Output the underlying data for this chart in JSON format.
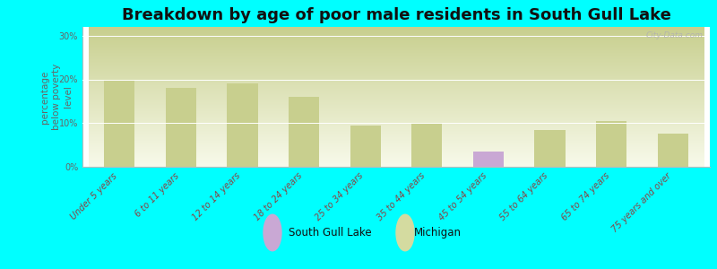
{
  "title": "Breakdown by age of poor male residents in South Gull Lake",
  "ylabel": "percentage\nbelow poverty\nlevel",
  "categories": [
    "Under 5 years",
    "6 to 11 years",
    "12 to 14 years",
    "18 to 24 years",
    "25 to 34 years",
    "35 to 44 years",
    "45 to 54 years",
    "55 to 64 years",
    "65 to 74 years",
    "75 years and over"
  ],
  "south_gull_lake_values": [
    0,
    0,
    0,
    0,
    0,
    0,
    3.5,
    0,
    0,
    0
  ],
  "michigan_values": [
    20.0,
    18.0,
    19.0,
    16.0,
    9.5,
    10.0,
    0,
    8.5,
    10.5,
    7.5
  ],
  "south_gull_lake_color": "#c9a8d4",
  "michigan_color": "#c8cf8e",
  "background_color": "#00ffff",
  "plot_bg_topleft": "#c8cf8e",
  "plot_bg_white": "#f8f8f0",
  "ylim": [
    0,
    32
  ],
  "yticks": [
    0,
    10,
    20,
    30
  ],
  "ytick_labels": [
    "0%",
    "10%",
    "20%",
    "30%"
  ],
  "title_fontsize": 13,
  "axis_label_fontsize": 7.5,
  "tick_label_fontsize": 7,
  "bar_width": 0.5,
  "legend_marker_color_sg": "#c9a8d4",
  "legend_marker_color_mi": "#d4dba0"
}
